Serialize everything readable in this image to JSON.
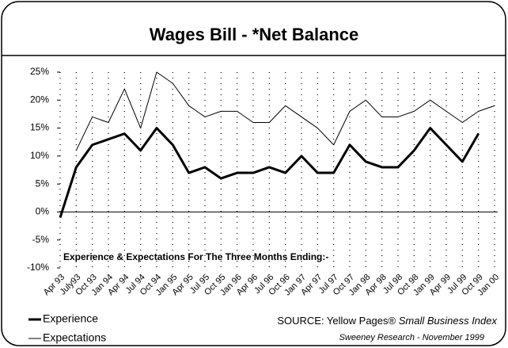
{
  "chart_data": {
    "type": "line",
    "title": "Wages Bill - *Net Balance",
    "annotation": "Experience & Expectations For The Three Months Ending:-",
    "source": "SOURCE: Yellow Pages®",
    "source_italic": "Small Business Index",
    "credit": "Sweeney Research - November 1999",
    "categories": [
      "Apr 93",
      "July93",
      "Oct 93",
      "Jan 94",
      "Apr 94",
      "Jul 94",
      "Oct 94",
      "Jan 95",
      "Apr 95",
      "Jul 95",
      "Oct 95",
      "Jan 96",
      "Apr 96",
      "Jul 96",
      "Oct 96",
      "Jan 97",
      "Apr 97",
      "Jul 97",
      "Oct 97",
      "Jan 98",
      "Apr 98",
      "Jul 98",
      "Oct 98",
      "Jan 99",
      "Apr 99",
      "Jul 99",
      "Oct 99",
      "Jan 00"
    ],
    "series": [
      {
        "name": "Experience",
        "color": "#000000",
        "width": 3,
        "values": [
          -1,
          8,
          12,
          13,
          14,
          11,
          15,
          12,
          7,
          8,
          6,
          7,
          7,
          8,
          7,
          10,
          7,
          7,
          12,
          9,
          8,
          8,
          11,
          15,
          12,
          9,
          14,
          null
        ]
      },
      {
        "name": "Expectations",
        "color": "#000000",
        "width": 1,
        "values": [
          null,
          11,
          17,
          16,
          22,
          15,
          25,
          23,
          19,
          17,
          18,
          18,
          16,
          16,
          19,
          17,
          15,
          12,
          18,
          20,
          17,
          17,
          18,
          20,
          18,
          16,
          18,
          19
        ]
      }
    ],
    "ylim": [
      -10,
      25
    ],
    "yticks": [
      {
        "value": -10,
        "label": "-10%"
      },
      {
        "value": -5,
        "label": "-5%"
      },
      {
        "value": 0,
        "label": "0%"
      },
      {
        "value": 5,
        "label": "5%"
      },
      {
        "value": 10,
        "label": "10%"
      },
      {
        "value": 15,
        "label": "15%"
      },
      {
        "value": 20,
        "label": "20%"
      },
      {
        "value": 25,
        "label": "25%"
      }
    ],
    "grid": true,
    "legend": "bottom-left"
  }
}
